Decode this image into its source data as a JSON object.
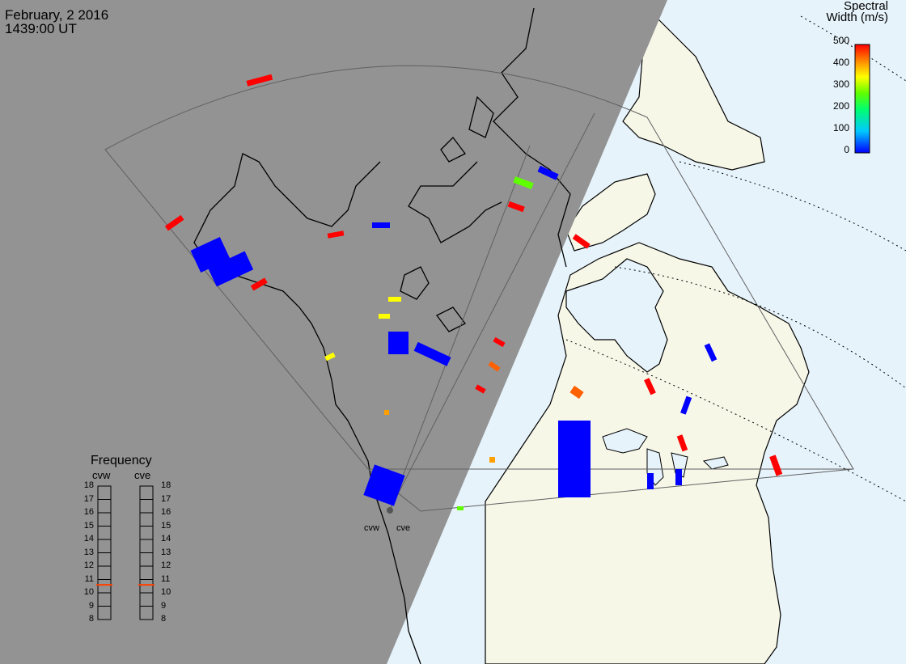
{
  "header": {
    "date": "February, 2 2016",
    "time": "1439:00 UT"
  },
  "colorbar": {
    "title_line1": "Spectral",
    "title_line2": "Width (m/s)",
    "ticks": [
      "500",
      "400",
      "300",
      "200",
      "100",
      "0"
    ],
    "range": [
      0,
      500
    ],
    "colors": [
      "#0000ff",
      "#00c0ff",
      "#00ff90",
      "#60ff00",
      "#ffff00",
      "#ffa000",
      "#ff4000",
      "#ff0000"
    ]
  },
  "frequency": {
    "title": "Frequency",
    "radars": [
      {
        "name": "cvw",
        "value_mhz": 10.6
      },
      {
        "name": "cve",
        "value_mhz": 10.6
      }
    ],
    "scale": [
      "18",
      "17",
      "16",
      "15",
      "14",
      "13",
      "12",
      "11",
      "10",
      "9",
      "8"
    ],
    "marker_color": "#ff4000"
  },
  "sites": [
    {
      "name": "cvw"
    },
    {
      "name": "cve"
    }
  ],
  "map_colors": {
    "night": "#939393",
    "land_day": "#f7f7e8",
    "ocean_day": "#e6f3fb",
    "coast": "#000000",
    "fov": "#606060"
  }
}
